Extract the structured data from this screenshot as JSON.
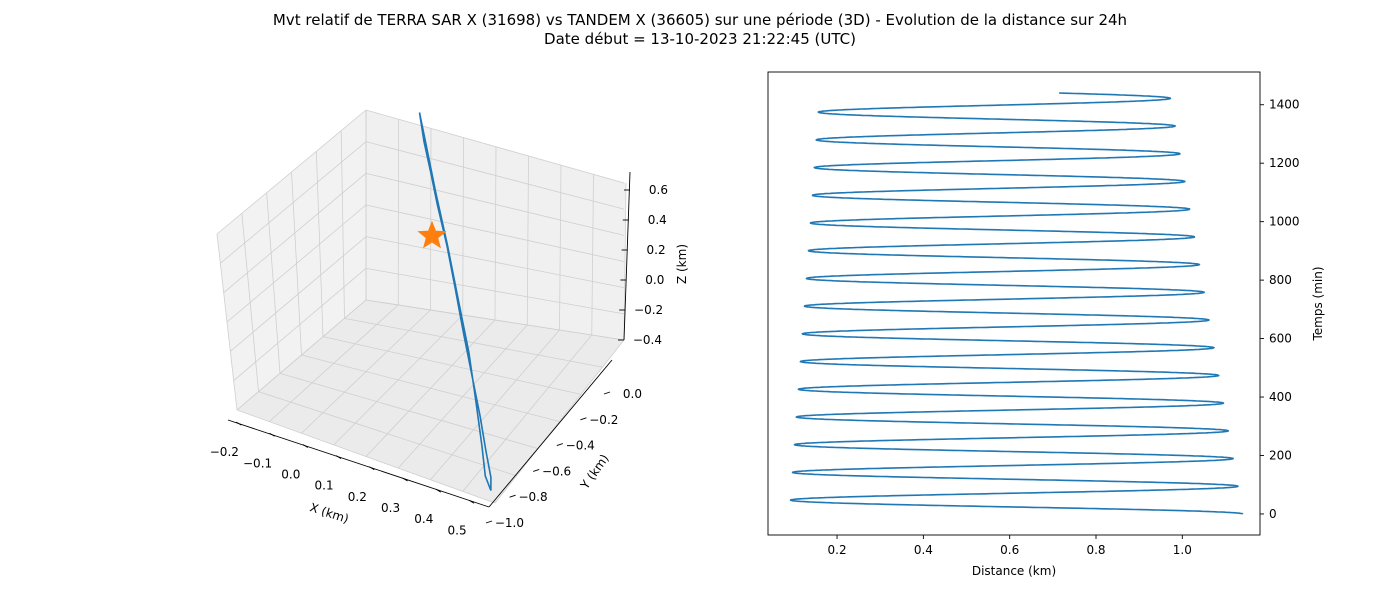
{
  "header": {
    "title_line1": "Mvt relatif de TERRA SAR X (31698) vs TANDEM X (36605) sur une période (3D) - Evolution de la distance sur 24h",
    "title_line2": "Date début = 13-10-2023 21:22:45 (UTC)"
  },
  "chart_data": [
    {
      "type": "line",
      "subtype": "3d",
      "xlabel": "X (km)",
      "ylabel": "Y (km)",
      "zlabel": "Z (km)",
      "x_ticks": [
        "−0.2",
        "−0.1",
        "0.0",
        "0.1",
        "0.2",
        "0.3",
        "0.4",
        "0.5"
      ],
      "y_ticks": [
        "0.0",
        "−0.2",
        "−0.4",
        "−0.6",
        "−0.8",
        "−1.0"
      ],
      "z_ticks": [
        "0.6",
        "0.4",
        "0.2",
        "0.0",
        "−0.2",
        "−0.4"
      ],
      "xlim": [
        -0.22,
        0.55
      ],
      "ylim": [
        -1.05,
        0.05
      ],
      "zlim": [
        -0.45,
        0.65
      ],
      "grid": true,
      "series": [
        {
          "marker": "line",
          "color": "#1f77b4",
          "points": [
            {
              "x": 0.02,
              "y": -0.02,
              "z": 0.58
            },
            {
              "x": 0.05,
              "y": -0.08,
              "z": 0.5
            },
            {
              "x": 0.09,
              "y": -0.15,
              "z": 0.42
            },
            {
              "x": 0.13,
              "y": -0.22,
              "z": 0.33
            },
            {
              "x": 0.18,
              "y": -0.3,
              "z": 0.22
            },
            {
              "x": 0.23,
              "y": -0.39,
              "z": 0.1
            },
            {
              "x": 0.28,
              "y": -0.48,
              "z": -0.03
            },
            {
              "x": 0.33,
              "y": -0.57,
              "z": -0.14
            },
            {
              "x": 0.38,
              "y": -0.66,
              "z": -0.25
            },
            {
              "x": 0.42,
              "y": -0.74,
              "z": -0.34
            },
            {
              "x": 0.46,
              "y": -0.82,
              "z": -0.4
            },
            {
              "x": 0.48,
              "y": -0.88,
              "z": -0.42
            },
            {
              "x": 0.47,
              "y": -0.89,
              "z": -0.36
            },
            {
              "x": 0.44,
              "y": -0.82,
              "z": -0.28
            },
            {
              "x": 0.39,
              "y": -0.71,
              "z": -0.17
            },
            {
              "x": 0.33,
              "y": -0.58,
              "z": -0.04
            },
            {
              "x": 0.26,
              "y": -0.45,
              "z": 0.09
            },
            {
              "x": 0.19,
              "y": -0.32,
              "z": 0.23
            },
            {
              "x": 0.12,
              "y": -0.2,
              "z": 0.37
            },
            {
              "x": 0.06,
              "y": -0.09,
              "z": 0.49
            },
            {
              "x": 0.02,
              "y": -0.02,
              "z": 0.58
            }
          ]
        },
        {
          "marker": "star",
          "color": "#ff7f0e",
          "points": [
            {
              "x": 0.0,
              "y": 0.0,
              "z": 0.0
            }
          ]
        }
      ]
    },
    {
      "type": "line",
      "xlabel": "Distance (km)",
      "ylabel": "Temps (min)",
      "xlim": [
        0.04,
        1.18
      ],
      "ylim": [
        -72,
        1512
      ],
      "x_ticks": [
        0.2,
        0.4,
        0.6,
        0.8,
        1.0
      ],
      "y_ticks": [
        0,
        200,
        400,
        600,
        800,
        1000,
        1200,
        1400
      ],
      "grid": false,
      "series": [
        {
          "color": "#1f77b4",
          "oscillation": {
            "t_start": 0,
            "t_end": 1440,
            "period_min": 94.8,
            "phase": 0,
            "min_dist_start": 0.09,
            "min_dist_end": 0.16,
            "max_dist_start": 1.14,
            "max_dist_end": 0.97
          }
        }
      ]
    }
  ]
}
